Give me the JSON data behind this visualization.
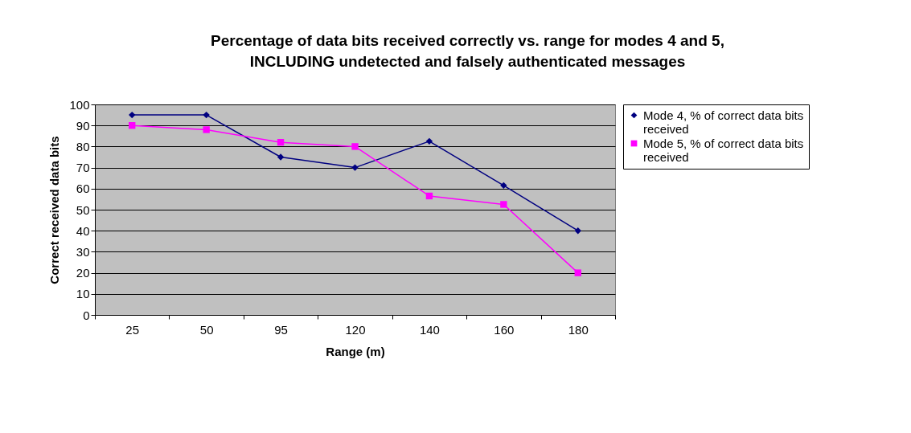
{
  "chart_data": {
    "type": "line",
    "title": "Percentage of data bits received correctly vs. range  for modes 4 and 5, INCLUDING undetected and falsely authenticated messages",
    "xlabel": "Range (m)",
    "ylabel": "Correct received data bits",
    "categories": [
      "25",
      "50",
      "95",
      "120",
      "140",
      "160",
      "180"
    ],
    "ylim": [
      0,
      100
    ],
    "yticks": [
      0,
      10,
      20,
      30,
      40,
      50,
      60,
      70,
      80,
      90,
      100
    ],
    "grid": "y",
    "legend": "right",
    "series": [
      {
        "name": "Mode 4, % of correct data bits received",
        "color": "#000080",
        "marker": "diamond",
        "values": [
          95,
          95,
          75,
          70,
          82.5,
          61.5,
          40
        ]
      },
      {
        "name": "Mode 5, % of correct data bits received",
        "color": "#ff00ff",
        "marker": "square",
        "values": [
          90,
          88,
          82,
          80,
          56.5,
          52.5,
          20
        ]
      }
    ]
  }
}
